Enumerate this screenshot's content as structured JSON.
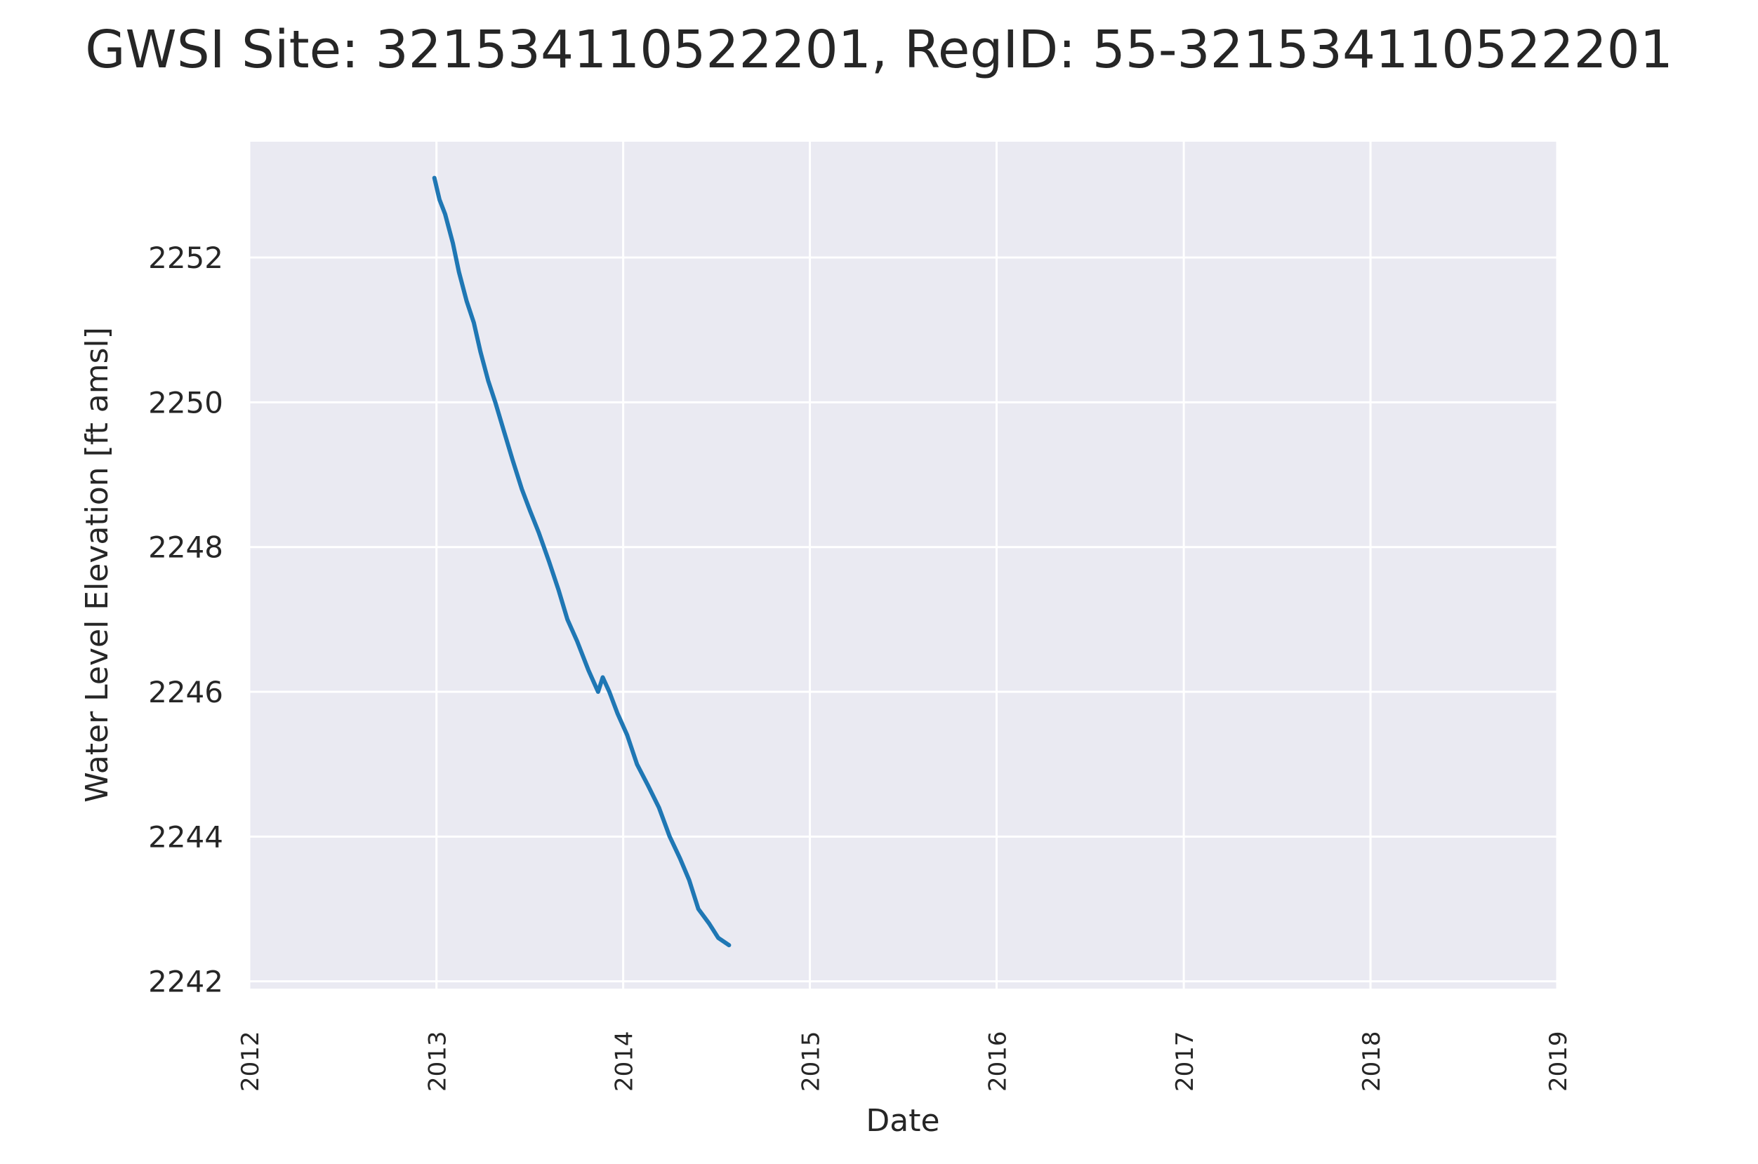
{
  "chart_data": {
    "type": "line",
    "title": "GWSI Site: 321534110522201, RegID: 55-321534110522201",
    "xlabel": "Date",
    "ylabel": "Water Level Elevation [ft amsl]",
    "xlim": [
      "2012-01-01",
      "2019-01-01"
    ],
    "ylim": [
      2241.9,
      2253.6
    ],
    "x_ticks": [
      "2012",
      "2013",
      "2014",
      "2015",
      "2016",
      "2017",
      "2018",
      "2019"
    ],
    "y_ticks": [
      2242,
      2244,
      2246,
      2248,
      2250,
      2252
    ],
    "grid": true,
    "series": [
      {
        "color": "#1f77b4",
        "points": [
          [
            "2012-12-28",
            2253.1
          ],
          [
            "2013-01-07",
            2252.8
          ],
          [
            "2013-01-18",
            2252.6
          ],
          [
            "2013-02-02",
            2252.2
          ],
          [
            "2013-02-14",
            2251.8
          ],
          [
            "2013-03-01",
            2251.4
          ],
          [
            "2013-03-15",
            2251.1
          ],
          [
            "2013-03-28",
            2250.7
          ],
          [
            "2013-04-12",
            2250.3
          ],
          [
            "2013-04-26",
            2250.0
          ],
          [
            "2013-05-13",
            2249.6
          ],
          [
            "2013-05-30",
            2249.2
          ],
          [
            "2013-06-17",
            2248.8
          ],
          [
            "2013-07-03",
            2248.5
          ],
          [
            "2013-07-20",
            2248.2
          ],
          [
            "2013-08-09",
            2247.8
          ],
          [
            "2013-08-28",
            2247.4
          ],
          [
            "2013-09-14",
            2247.0
          ],
          [
            "2013-10-03",
            2246.7
          ],
          [
            "2013-10-25",
            2246.3
          ],
          [
            "2013-11-13",
            2246.0
          ],
          [
            "2013-11-22",
            2246.2
          ],
          [
            "2013-12-05",
            2246.0
          ],
          [
            "2013-12-21",
            2245.7
          ],
          [
            "2014-01-09",
            2245.4
          ],
          [
            "2014-01-28",
            2245.0
          ],
          [
            "2014-02-19",
            2244.7
          ],
          [
            "2014-03-12",
            2244.4
          ],
          [
            "2014-04-02",
            2244.0
          ],
          [
            "2014-04-22",
            2243.7
          ],
          [
            "2014-05-10",
            2243.4
          ],
          [
            "2014-05-28",
            2243.0
          ],
          [
            "2014-06-18",
            2242.8
          ],
          [
            "2014-07-06",
            2242.6
          ],
          [
            "2014-07-27",
            2242.5
          ]
        ]
      }
    ]
  }
}
